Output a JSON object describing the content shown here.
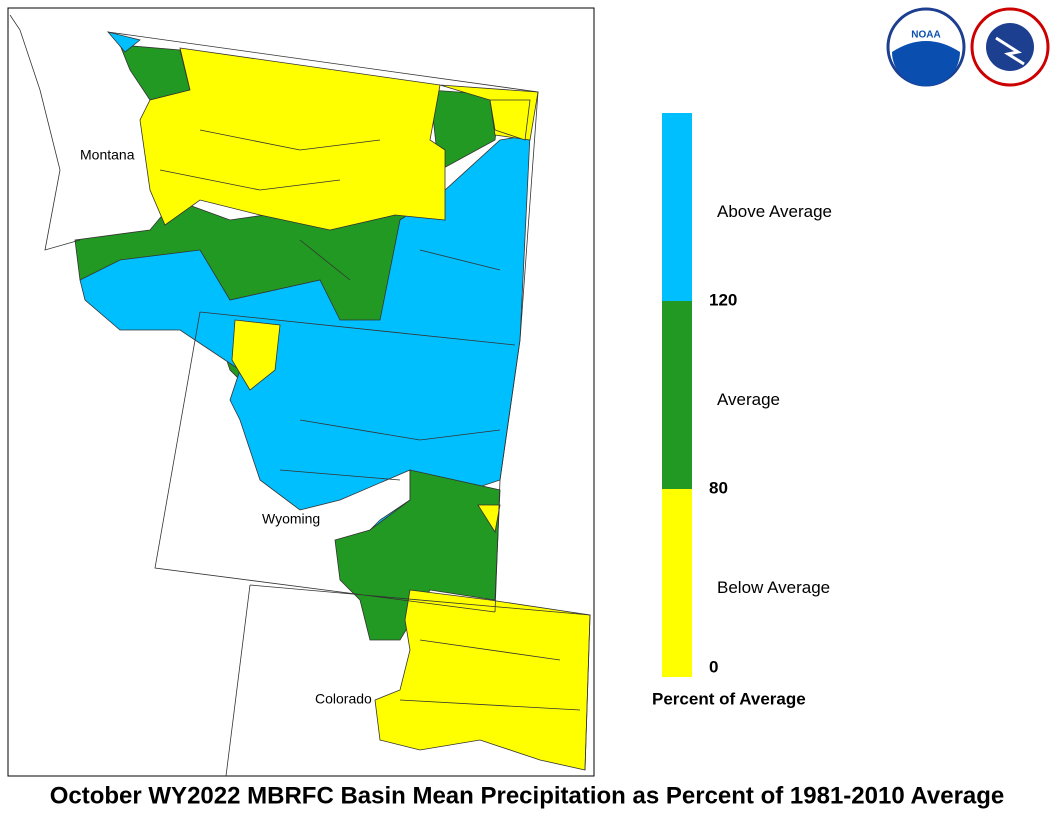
{
  "title": "October WY2022 MBRFC Basin Mean Precipitation as Percent of 1981-2010 Average",
  "map": {
    "states": [
      "Montana",
      "Wyoming",
      "Colorado"
    ]
  },
  "legend": {
    "title": "Percent of Average",
    "classes": [
      {
        "label": "Below Average",
        "color": "#ffff00"
      },
      {
        "label": "Average",
        "color": "#229922"
      },
      {
        "label": "Above Average",
        "color": "#00bfff"
      }
    ],
    "ticks": [
      0,
      80,
      120
    ]
  },
  "logos": {
    "noaa": "NOAA"
  }
}
